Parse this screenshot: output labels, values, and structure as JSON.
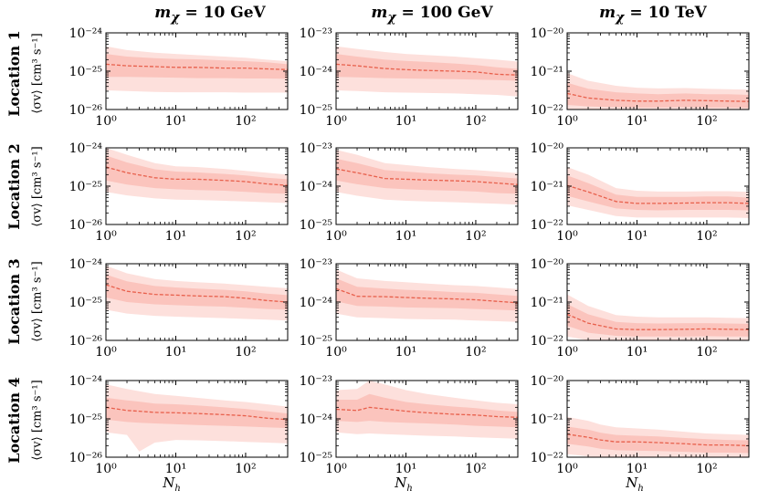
{
  "columns": [
    {
      "prefix": "m",
      "sub": "χ",
      "eq": " = ",
      "val": "10 GeV"
    },
    {
      "prefix": "m",
      "sub": "χ",
      "eq": " = ",
      "val": "100 GeV"
    },
    {
      "prefix": "m",
      "sub": "χ",
      "eq": " = ",
      "val": "10 TeV"
    }
  ],
  "rows": [
    "Location 1",
    "Location 2",
    "Location 3",
    "Location 4"
  ],
  "ylabel": "⟨σv⟩ [cm³ s⁻¹]",
  "xlabel_main": "N",
  "xlabel_sub": "h",
  "colors": {
    "outer_band": "#fde0dc",
    "inner_band": "#fbc4bd",
    "median": "#e8604c"
  },
  "chart_data": {
    "type": "area",
    "x_scale": "log",
    "y_scale": "log",
    "xlim": [
      1,
      400
    ],
    "x_ticks": [
      "10⁰",
      "10¹",
      "10²"
    ],
    "x_tick_values": [
      1,
      10,
      100
    ],
    "panels": [
      {
        "row": 0,
        "col": 0,
        "ylim_exp": [
          -26,
          -24
        ],
        "y_ticks": [
          "10⁻²⁴",
          "10⁻²⁵",
          "10⁻²⁶"
        ],
        "x": [
          1,
          2,
          5,
          10,
          20,
          50,
          100,
          200,
          400
        ],
        "median_exp": [
          -24.82,
          -24.86,
          -24.88,
          -24.9,
          -24.9,
          -24.92,
          -24.92,
          -24.94,
          -24.96
        ],
        "inner_hi_exp": [
          -24.55,
          -24.62,
          -24.66,
          -24.68,
          -24.69,
          -24.72,
          -24.74,
          -24.77,
          -24.82
        ],
        "inner_lo_exp": [
          -25.15,
          -25.15,
          -25.16,
          -25.17,
          -25.18,
          -25.18,
          -25.19,
          -25.19,
          -25.2
        ],
        "outer_hi_exp": [
          -24.35,
          -24.45,
          -24.52,
          -24.55,
          -24.58,
          -24.62,
          -24.65,
          -24.7,
          -24.74
        ],
        "outer_lo_exp": [
          -25.5,
          -25.52,
          -25.54,
          -25.55,
          -25.55,
          -25.55,
          -25.56,
          -25.56,
          -25.56
        ]
      },
      {
        "row": 0,
        "col": 1,
        "ylim_exp": [
          -25,
          -23
        ],
        "y_ticks": [
          "10⁻²³",
          "10⁻²⁴",
          "10⁻²⁵"
        ],
        "x": [
          1,
          2,
          5,
          10,
          20,
          50,
          100,
          200,
          400
        ],
        "median_exp": [
          -23.82,
          -23.86,
          -23.93,
          -23.96,
          -23.98,
          -24.0,
          -24.02,
          -24.08,
          -24.1
        ],
        "inner_hi_exp": [
          -23.55,
          -23.62,
          -23.7,
          -23.73,
          -23.76,
          -23.8,
          -23.84,
          -23.9,
          -23.94
        ],
        "inner_lo_exp": [
          -24.15,
          -24.16,
          -24.18,
          -24.19,
          -24.2,
          -24.21,
          -24.22,
          -24.23,
          -24.25
        ],
        "outer_hi_exp": [
          -23.35,
          -23.42,
          -23.5,
          -23.55,
          -23.58,
          -23.62,
          -23.66,
          -23.7,
          -23.75
        ],
        "outer_lo_exp": [
          -24.5,
          -24.52,
          -24.55,
          -24.56,
          -24.57,
          -24.58,
          -24.6,
          -24.62,
          -24.66
        ]
      },
      {
        "row": 0,
        "col": 2,
        "ylim_exp": [
          -22,
          -20
        ],
        "y_ticks": [
          "10⁻²⁰",
          "10⁻²¹",
          "10⁻²²"
        ],
        "x": [
          1,
          2,
          5,
          10,
          20,
          50,
          100,
          200,
          400
        ],
        "median_exp": [
          -21.58,
          -21.7,
          -21.76,
          -21.78,
          -21.78,
          -21.76,
          -21.77,
          -21.78,
          -21.79
        ],
        "inner_hi_exp": [
          -21.3,
          -21.46,
          -21.55,
          -21.58,
          -21.6,
          -21.58,
          -21.6,
          -21.6,
          -21.62
        ],
        "inner_lo_exp": [
          -21.88,
          -21.92,
          -21.94,
          -21.95,
          -21.95,
          -21.94,
          -21.95,
          -21.95,
          -21.96
        ],
        "outer_hi_exp": [
          -21.05,
          -21.25,
          -21.38,
          -21.43,
          -21.45,
          -21.44,
          -21.46,
          -21.47,
          -21.48
        ],
        "outer_lo_exp": [
          -22.0,
          -22.0,
          -22.0,
          -22.0,
          -22.0,
          -22.0,
          -22.0,
          -22.0,
          -22.0
        ]
      },
      {
        "row": 1,
        "col": 0,
        "ylim_exp": [
          -26,
          -24
        ],
        "y_ticks": [
          "10⁻²⁴",
          "10⁻²⁵",
          "10⁻²⁶"
        ],
        "x": [
          1,
          2,
          5,
          10,
          20,
          50,
          100,
          200,
          400
        ],
        "median_exp": [
          -24.5,
          -24.65,
          -24.78,
          -24.82,
          -24.82,
          -24.85,
          -24.88,
          -24.94,
          -24.98
        ],
        "inner_hi_exp": [
          -24.2,
          -24.38,
          -24.56,
          -24.62,
          -24.64,
          -24.68,
          -24.72,
          -24.78,
          -24.82
        ],
        "inner_lo_exp": [
          -24.85,
          -24.96,
          -25.05,
          -25.08,
          -25.1,
          -25.12,
          -25.15,
          -25.18,
          -25.2
        ],
        "outer_hi_exp": [
          -24.0,
          -24.18,
          -24.4,
          -24.48,
          -24.5,
          -24.55,
          -24.6,
          -24.65,
          -24.7
        ],
        "outer_lo_exp": [
          -25.15,
          -25.24,
          -25.32,
          -25.35,
          -25.36,
          -25.38,
          -25.4,
          -25.42,
          -25.44
        ]
      },
      {
        "row": 1,
        "col": 1,
        "ylim_exp": [
          -25,
          -23
        ],
        "y_ticks": [
          "10⁻²³",
          "10⁻²⁴",
          "10⁻²⁵"
        ],
        "x": [
          1,
          2,
          5,
          10,
          20,
          50,
          100,
          200,
          400
        ],
        "median_exp": [
          -23.55,
          -23.65,
          -23.8,
          -23.82,
          -23.84,
          -23.86,
          -23.88,
          -23.92,
          -23.96
        ],
        "inner_hi_exp": [
          -23.28,
          -23.4,
          -23.58,
          -23.62,
          -23.66,
          -23.7,
          -23.72,
          -23.76,
          -23.8
        ],
        "inner_lo_exp": [
          -23.85,
          -23.95,
          -24.05,
          -24.08,
          -24.1,
          -24.12,
          -24.14,
          -24.18,
          -24.2
        ],
        "outer_hi_exp": [
          -23.05,
          -23.18,
          -23.4,
          -23.45,
          -23.5,
          -23.55,
          -23.58,
          -23.62,
          -23.66
        ],
        "outer_lo_exp": [
          -24.15,
          -24.25,
          -24.35,
          -24.38,
          -24.4,
          -24.42,
          -24.44,
          -24.46,
          -24.48
        ]
      },
      {
        "row": 1,
        "col": 2,
        "ylim_exp": [
          -22,
          -20
        ],
        "y_ticks": [
          "10⁻²⁰",
          "10⁻²¹",
          "10⁻²²"
        ],
        "x": [
          1,
          2,
          5,
          10,
          20,
          50,
          100,
          200,
          400
        ],
        "median_exp": [
          -20.98,
          -21.15,
          -21.4,
          -21.45,
          -21.45,
          -21.44,
          -21.43,
          -21.43,
          -21.45
        ],
        "inner_hi_exp": [
          -20.72,
          -20.92,
          -21.22,
          -21.28,
          -21.28,
          -21.28,
          -21.27,
          -21.27,
          -21.3
        ],
        "inner_lo_exp": [
          -21.25,
          -21.4,
          -21.58,
          -21.62,
          -21.63,
          -21.62,
          -21.62,
          -21.62,
          -21.63
        ],
        "outer_hi_exp": [
          -20.5,
          -20.7,
          -21.05,
          -21.12,
          -21.14,
          -21.14,
          -21.13,
          -21.13,
          -21.15
        ],
        "outer_lo_exp": [
          -21.5,
          -21.62,
          -21.78,
          -21.82,
          -21.82,
          -21.82,
          -21.82,
          -21.82,
          -21.83
        ]
      },
      {
        "row": 2,
        "col": 0,
        "ylim_exp": [
          -26,
          -24
        ],
        "y_ticks": [
          "10⁻²⁴",
          "10⁻²⁵",
          "10⁻²⁶"
        ],
        "x": [
          1,
          2,
          5,
          10,
          20,
          50,
          100,
          200,
          400
        ],
        "median_exp": [
          -24.55,
          -24.72,
          -24.8,
          -24.82,
          -24.84,
          -24.86,
          -24.9,
          -24.96,
          -25.0
        ],
        "inner_hi_exp": [
          -24.28,
          -24.46,
          -24.58,
          -24.62,
          -24.65,
          -24.68,
          -24.72,
          -24.78,
          -24.82
        ],
        "inner_lo_exp": [
          -24.88,
          -25.0,
          -25.06,
          -25.08,
          -25.1,
          -25.12,
          -25.15,
          -25.18,
          -25.2
        ],
        "outer_hi_exp": [
          -24.05,
          -24.25,
          -24.4,
          -24.45,
          -24.48,
          -24.52,
          -24.56,
          -24.6,
          -24.64
        ],
        "outer_lo_exp": [
          -25.2,
          -25.3,
          -25.36,
          -25.38,
          -25.4,
          -25.42,
          -25.44,
          -25.46,
          -25.48
        ]
      },
      {
        "row": 2,
        "col": 1,
        "ylim_exp": [
          -25,
          -23
        ],
        "y_ticks": [
          "10⁻²³",
          "10⁻²⁴",
          "10⁻²⁵"
        ],
        "x": [
          1,
          2,
          5,
          10,
          20,
          50,
          100,
          200,
          400
        ],
        "median_exp": [
          -23.65,
          -23.85,
          -23.86,
          -23.88,
          -23.9,
          -23.92,
          -23.94,
          -23.98,
          -24.02
        ],
        "inner_hi_exp": [
          -23.38,
          -23.6,
          -23.65,
          -23.68,
          -23.7,
          -23.74,
          -23.76,
          -23.8,
          -23.84
        ],
        "inner_lo_exp": [
          -23.98,
          -24.1,
          -24.12,
          -24.14,
          -24.15,
          -24.16,
          -24.18,
          -24.2,
          -24.22
        ],
        "outer_hi_exp": [
          -23.15,
          -23.38,
          -23.45,
          -23.48,
          -23.52,
          -23.56,
          -23.58,
          -23.62,
          -23.66
        ],
        "outer_lo_exp": [
          -24.3,
          -24.4,
          -24.42,
          -24.44,
          -24.45,
          -24.46,
          -24.48,
          -24.5,
          -24.52
        ]
      },
      {
        "row": 2,
        "col": 2,
        "ylim_exp": [
          -22,
          -20
        ],
        "y_ticks": [
          "10⁻²⁰",
          "10⁻²¹",
          "10⁻²²"
        ],
        "x": [
          1,
          2,
          5,
          10,
          20,
          50,
          100,
          200,
          400
        ],
        "median_exp": [
          -21.32,
          -21.55,
          -21.7,
          -21.72,
          -21.72,
          -21.71,
          -21.7,
          -21.71,
          -21.72
        ],
        "inner_hi_exp": [
          -21.05,
          -21.32,
          -21.52,
          -21.55,
          -21.56,
          -21.55,
          -21.55,
          -21.56,
          -21.57
        ],
        "inner_lo_exp": [
          -21.62,
          -21.8,
          -21.88,
          -21.9,
          -21.9,
          -21.9,
          -21.89,
          -21.9,
          -21.9
        ],
        "outer_hi_exp": [
          -20.8,
          -21.1,
          -21.34,
          -21.38,
          -21.4,
          -21.4,
          -21.4,
          -21.41,
          -21.42
        ],
        "outer_lo_exp": [
          -21.9,
          -22.0,
          -22.0,
          -22.0,
          -22.0,
          -22.0,
          -22.0,
          -22.0,
          -22.0
        ]
      },
      {
        "row": 3,
        "col": 0,
        "ylim_exp": [
          -26,
          -24
        ],
        "y_ticks": [
          "10⁻²⁴",
          "10⁻²⁵",
          "10⁻²⁶"
        ],
        "x": [
          1,
          2,
          3,
          5,
          10,
          20,
          50,
          100,
          200,
          400
        ],
        "median_exp": [
          -24.7,
          -24.78,
          -24.8,
          -24.83,
          -24.84,
          -24.86,
          -24.89,
          -24.92,
          -24.98,
          -25.02
        ],
        "inner_hi_exp": [
          -24.45,
          -24.52,
          -24.55,
          -24.6,
          -24.62,
          -24.65,
          -24.7,
          -24.74,
          -24.8,
          -24.86
        ],
        "inner_lo_exp": [
          -25.02,
          -25.08,
          -25.1,
          -25.12,
          -25.14,
          -25.16,
          -25.18,
          -25.2,
          -25.22,
          -25.24
        ],
        "outer_hi_exp": [
          -24.1,
          -24.22,
          -24.28,
          -24.35,
          -24.4,
          -24.45,
          -24.52,
          -24.56,
          -24.62,
          -24.68
        ],
        "outer_lo_exp": [
          -25.35,
          -25.42,
          -25.85,
          -25.62,
          -25.55,
          -25.56,
          -25.58,
          -25.6,
          -25.62,
          -25.64
        ]
      },
      {
        "row": 3,
        "col": 1,
        "ylim_exp": [
          -25,
          -23
        ],
        "y_ticks": [
          "10⁻²³",
          "10⁻²⁴",
          "10⁻²⁵"
        ],
        "x": [
          1,
          2,
          3,
          5,
          10,
          20,
          50,
          100,
          200,
          400
        ],
        "median_exp": [
          -23.75,
          -23.78,
          -23.7,
          -23.74,
          -23.8,
          -23.84,
          -23.88,
          -23.9,
          -23.94,
          -23.96
        ],
        "inner_hi_exp": [
          -23.5,
          -23.5,
          -23.35,
          -23.45,
          -23.56,
          -23.62,
          -23.68,
          -23.72,
          -23.78,
          -23.82
        ],
        "inner_lo_exp": [
          -24.05,
          -24.08,
          -24.05,
          -24.08,
          -24.1,
          -24.12,
          -24.15,
          -24.18,
          -24.2,
          -24.22
        ],
        "outer_hi_exp": [
          -23.25,
          -23.22,
          -23.0,
          -23.1,
          -23.25,
          -23.35,
          -23.45,
          -23.52,
          -23.58,
          -23.62
        ],
        "outer_lo_exp": [
          -24.35,
          -24.4,
          -24.38,
          -24.4,
          -24.42,
          -24.44,
          -24.46,
          -24.48,
          -24.5,
          -24.52
        ]
      },
      {
        "row": 3,
        "col": 2,
        "ylim_exp": [
          -22,
          -20
        ],
        "y_ticks": [
          "10⁻²⁰",
          "10⁻²¹",
          "10⁻²²"
        ],
        "x": [
          1,
          2,
          3,
          5,
          10,
          20,
          50,
          100,
          200,
          400
        ],
        "median_exp": [
          -21.4,
          -21.48,
          -21.55,
          -21.6,
          -21.6,
          -21.62,
          -21.65,
          -21.68,
          -21.68,
          -21.7
        ],
        "inner_hi_exp": [
          -21.2,
          -21.28,
          -21.36,
          -21.42,
          -21.44,
          -21.46,
          -21.5,
          -21.53,
          -21.55,
          -21.56
        ],
        "inner_lo_exp": [
          -21.65,
          -21.72,
          -21.78,
          -21.82,
          -21.83,
          -21.84,
          -21.86,
          -21.88,
          -21.88,
          -21.89
        ],
        "outer_hi_exp": [
          -20.95,
          -21.05,
          -21.15,
          -21.22,
          -21.25,
          -21.28,
          -21.34,
          -21.38,
          -21.4,
          -21.42
        ],
        "outer_lo_exp": [
          -21.92,
          -21.98,
          -22.0,
          -22.0,
          -22.0,
          -22.0,
          -22.0,
          -22.0,
          -22.0,
          -22.0
        ]
      }
    ]
  }
}
